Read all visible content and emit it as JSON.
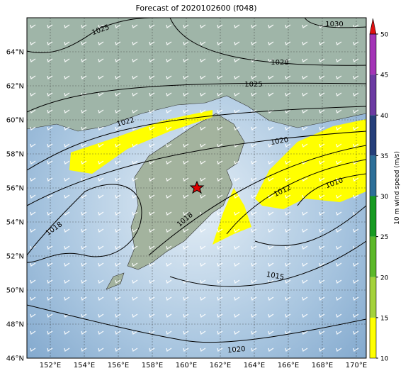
{
  "map": {
    "title": "Forecast of 2020102600 (f048)",
    "lon_labels": [
      "152°E",
      "154°E",
      "156°E",
      "158°E",
      "160°E",
      "162°E",
      "164°E",
      "166°E",
      "168°E",
      "170°E"
    ],
    "lat_labels": [
      "64°N",
      "62°N",
      "60°N",
      "58°N",
      "56°N",
      "54°N",
      "52°N",
      "50°N",
      "48°N",
      "46°N"
    ],
    "contour_labels": [
      "1025",
      "1030",
      "1028",
      "1025",
      "1022",
      "1020",
      "1012",
      "1010",
      "1018",
      "1018",
      "1015",
      "1020"
    ],
    "colorbar": {
      "label": "10 m wind speed (m/s)",
      "ticks": [
        10,
        15,
        20,
        25,
        30,
        35,
        40,
        45,
        50
      ],
      "colors": [
        "#ffff00",
        "#a4d23c",
        "#5cb82a",
        "#179a22",
        "#2d6f98",
        "#253f7a",
        "#6b3aa2",
        "#a334b6"
      ],
      "extend_color": "#e01010"
    }
  }
}
